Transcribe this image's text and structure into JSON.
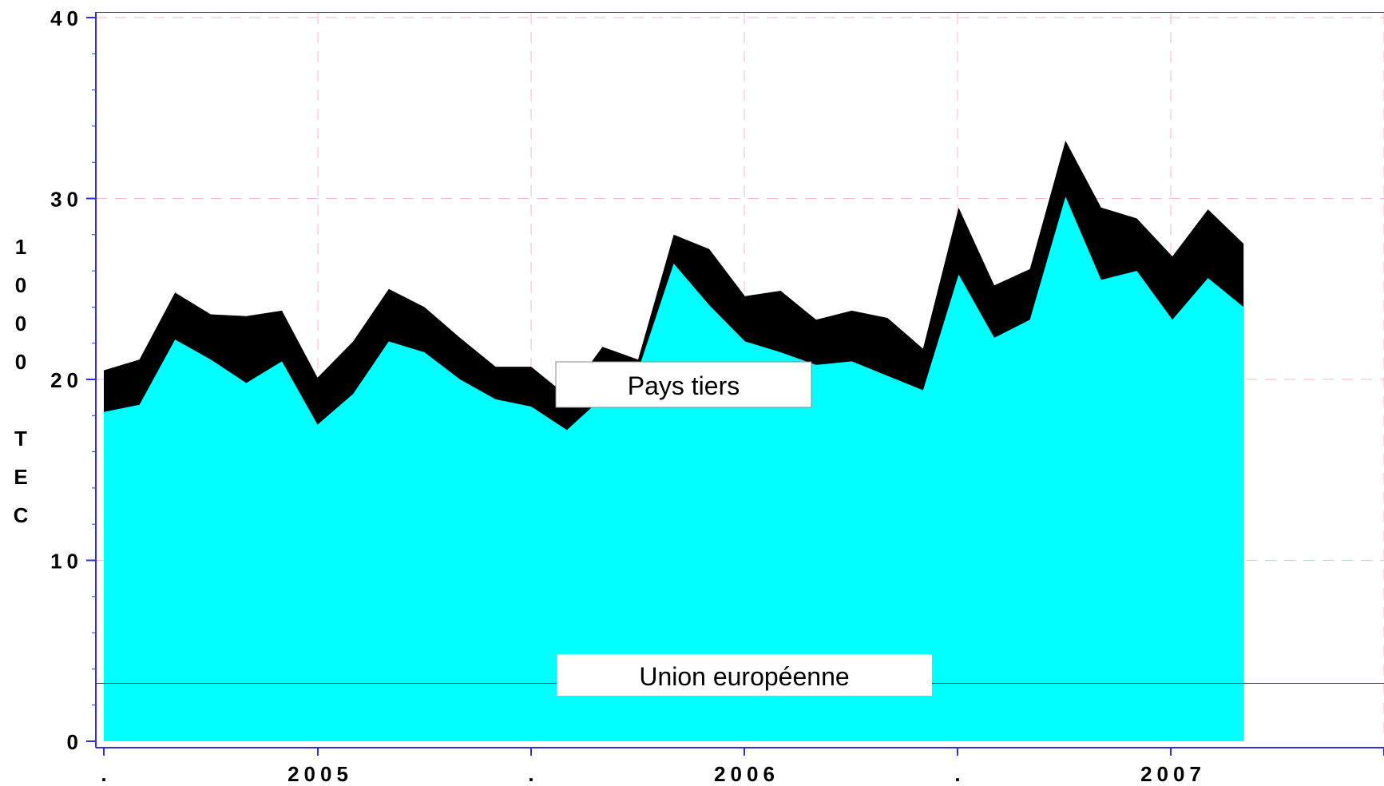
{
  "chart_data": {
    "type": "area",
    "stacked": true,
    "ylabel": "1000 TEC",
    "ylim": [
      0,
      40
    ],
    "y_ticks": [
      0,
      10,
      20,
      30,
      40
    ],
    "y_tick_labels": [
      "0",
      "10",
      "20",
      "30",
      "40"
    ],
    "x_tick_labels": [
      ".",
      "2005",
      ".",
      "2006",
      ".",
      "2007"
    ],
    "grid": true,
    "series": [
      {
        "name": "Union européenne",
        "color": "#00ffff",
        "values": [
          18.2,
          18.6,
          22.2,
          21.1,
          19.8,
          21.0,
          17.5,
          19.2,
          22.1,
          21.5,
          20.0,
          18.9,
          18.5,
          17.2,
          19.0,
          20.5,
          26.4,
          24.1,
          22.1,
          21.5,
          20.8,
          21.0,
          20.2,
          19.4,
          25.8,
          22.3,
          23.3,
          30.1,
          25.5,
          26.0,
          23.3,
          25.6,
          24.0
        ]
      },
      {
        "name": "Pays tiers",
        "color": "#000000",
        "values": [
          2.3,
          2.5,
          2.6,
          2.5,
          3.7,
          2.8,
          2.6,
          2.9,
          2.9,
          2.5,
          2.3,
          1.8,
          2.2,
          1.9,
          2.8,
          0.6,
          1.6,
          3.1,
          2.5,
          3.4,
          2.5,
          2.8,
          3.2,
          2.3,
          3.7,
          2.9,
          2.8,
          3.1,
          4.0,
          2.9,
          3.5,
          3.8,
          3.5
        ]
      }
    ]
  }
}
